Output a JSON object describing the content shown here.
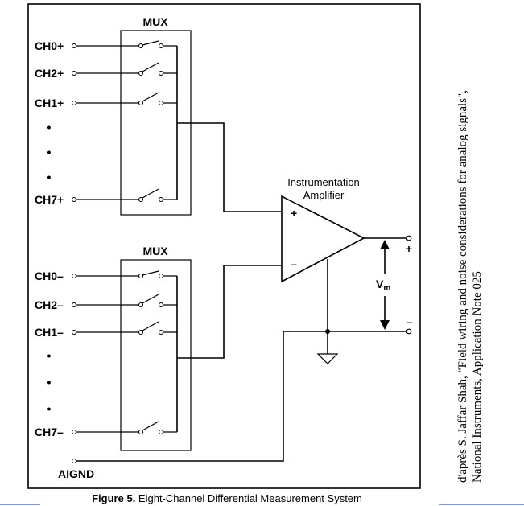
{
  "diagram": {
    "mux_top_label": "MUX",
    "mux_bottom_label": "MUX",
    "top_channels": [
      "CH0+",
      "CH2+",
      "CH1+",
      "CH7+"
    ],
    "bottom_channels": [
      "CH0–",
      "CH2–",
      "CH1–",
      "CH7–"
    ],
    "amp_title_line1": "Instrumentation",
    "amp_title_line2": "Amplifier",
    "plus_sign": "+",
    "minus_sign": "–",
    "out_plus": "+",
    "out_minus": "–",
    "vm_main": "V",
    "vm_sub": "m",
    "aignd": "AIGND",
    "caption_prefix": "Figure 5.",
    "caption_text": "Eight-Channel Differential Measurement System",
    "source_line1": "d'après S. Jaffar Shah, \"Field wiring and noise considerations for analog signals\",",
    "source_line2": "National Instruments, Application Note 025",
    "dot": "•"
  }
}
